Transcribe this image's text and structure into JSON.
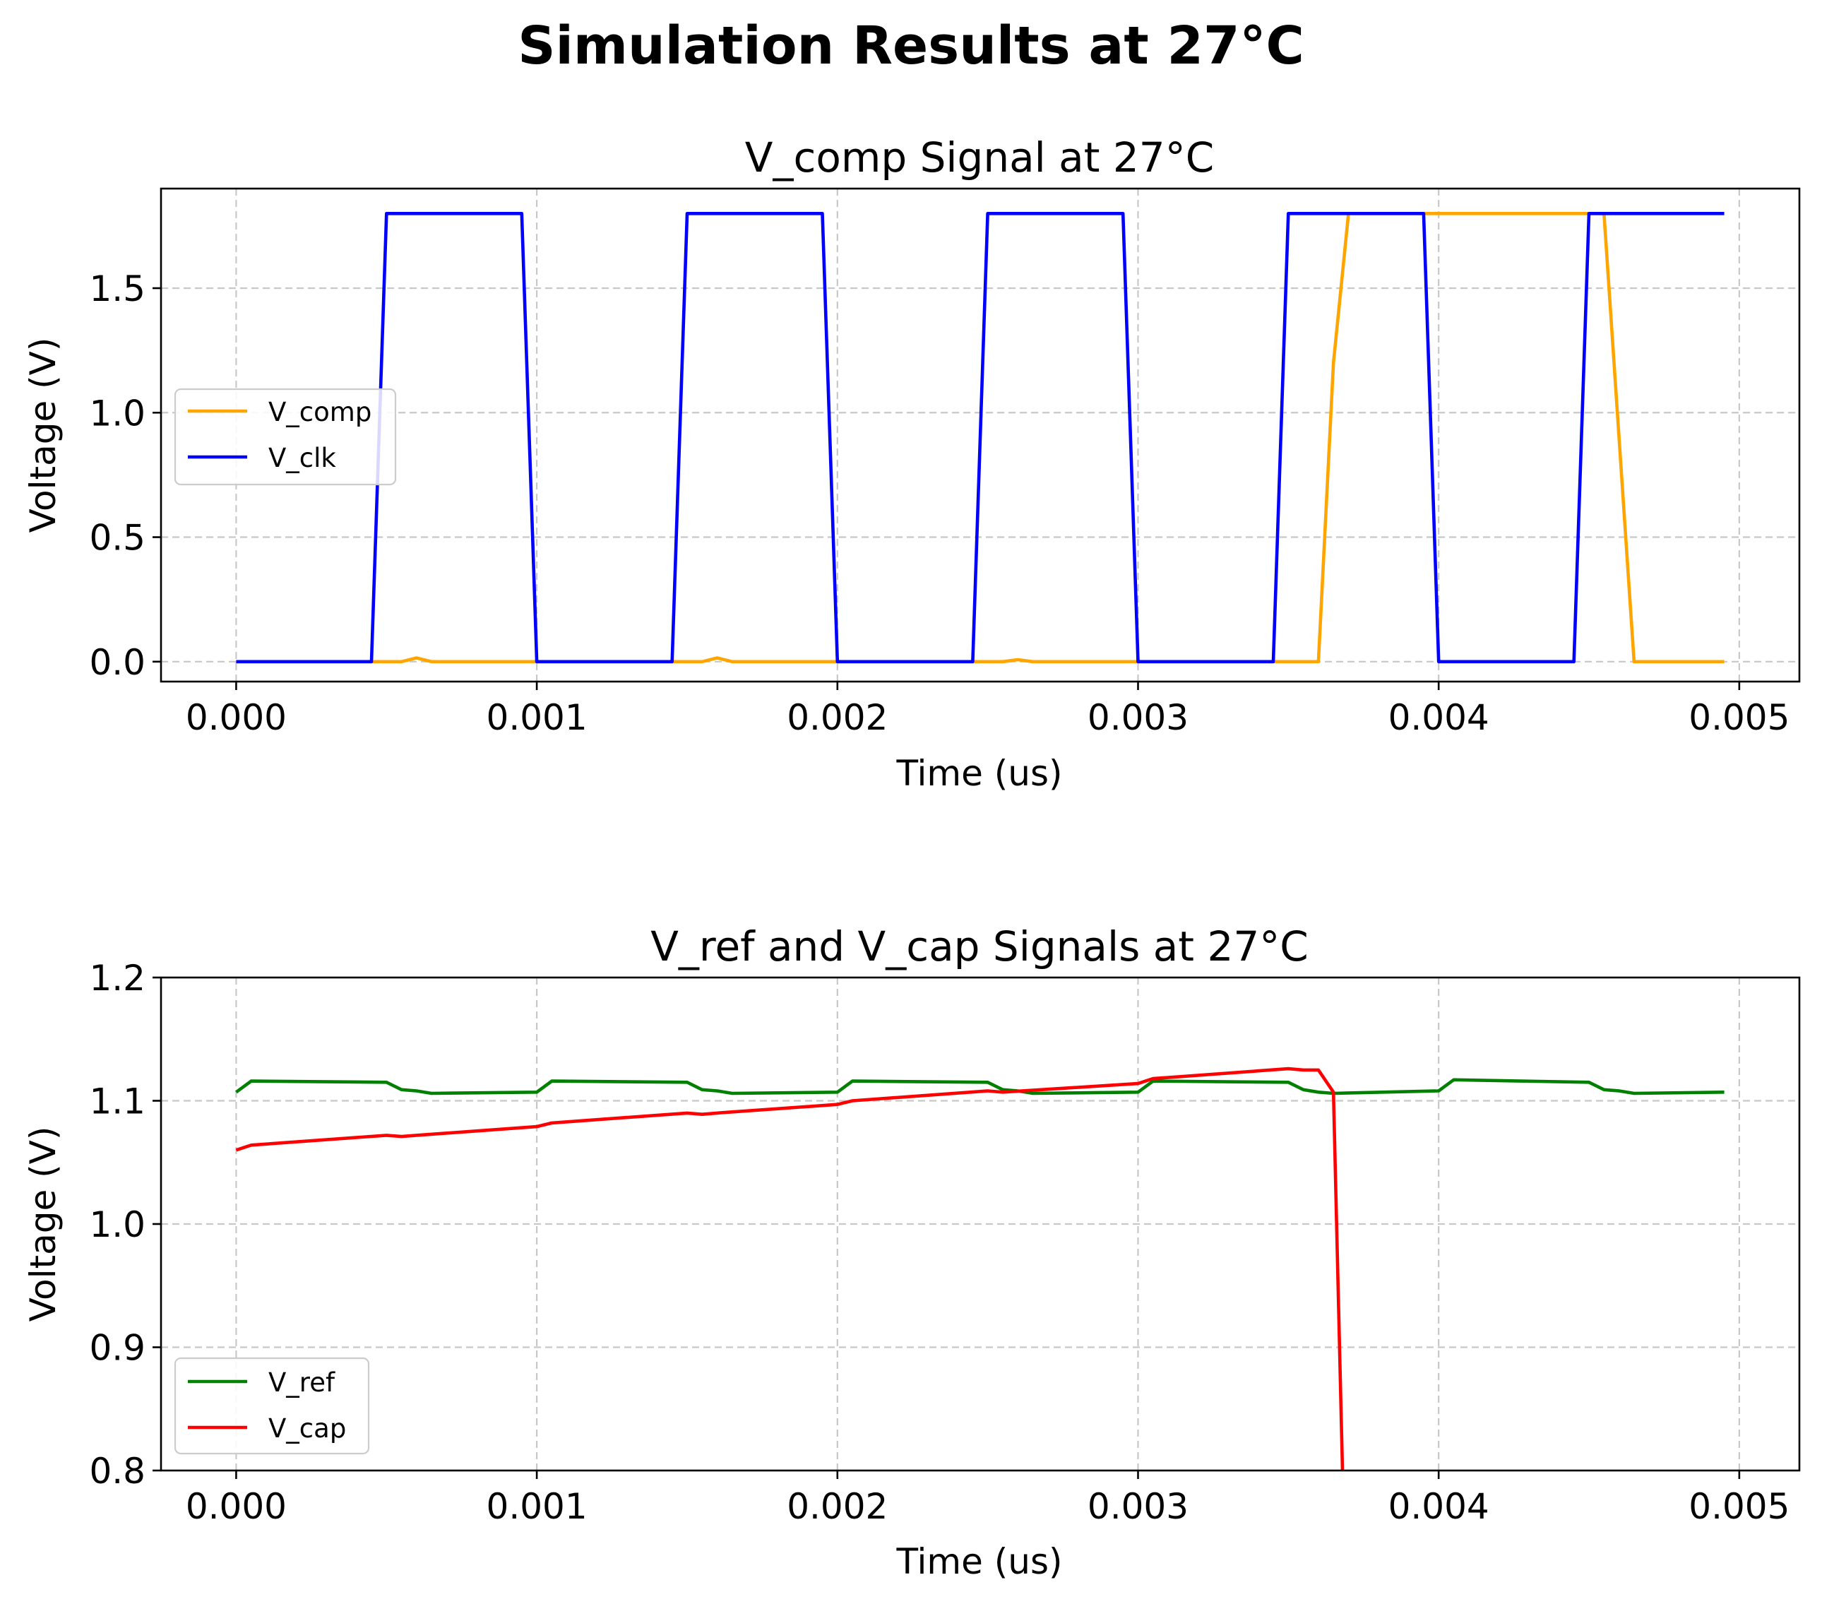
{
  "figure_title": "Simulation Results at 27°C",
  "chart_data": [
    {
      "type": "line",
      "title": "V_comp Signal at 27°C",
      "xlabel": "Time (us)",
      "ylabel": "Voltage (V)",
      "xlim": [
        -0.00025,
        0.0052
      ],
      "ylim": [
        -0.08,
        1.9
      ],
      "xticks": [
        0.0,
        0.001,
        0.002,
        0.003,
        0.004,
        0.005
      ],
      "xtick_labels": [
        "0.000",
        "0.001",
        "0.002",
        "0.003",
        "0.004",
        "0.005"
      ],
      "yticks": [
        0.0,
        0.5,
        1.0,
        1.5
      ],
      "ytick_labels": [
        "0.0",
        "0.5",
        "1.0",
        "1.5"
      ],
      "grid": true,
      "legend_position": "center-left",
      "series": [
        {
          "name": "V_comp",
          "color": "#ffa500",
          "x": [
            0,
            0.00055,
            0.0006,
            0.00065,
            0.0015,
            0.00155,
            0.0016,
            0.00165,
            0.0025,
            0.00255,
            0.0026,
            0.00265,
            0.0036,
            0.00365,
            0.0037,
            0.0045,
            0.00455,
            0.00465,
            0.00495
          ],
          "y": [
            0,
            0,
            0.015,
            0,
            0,
            0,
            0.015,
            0,
            0,
            0,
            0.008,
            0,
            0,
            1.2,
            1.8,
            1.8,
            1.8,
            0,
            0
          ]
        },
        {
          "name": "V_clk",
          "color": "#0000ff",
          "x": [
            0,
            0.00045,
            0.0005,
            0.00095,
            0.001,
            0.00145,
            0.0015,
            0.00195,
            0.002,
            0.00245,
            0.0025,
            0.00295,
            0.003,
            0.00345,
            0.0035,
            0.00395,
            0.004,
            0.00445,
            0.0045,
            0.00495
          ],
          "y": [
            0,
            0,
            1.8,
            1.8,
            0,
            0,
            1.8,
            1.8,
            0,
            0,
            1.8,
            1.8,
            0,
            0,
            1.8,
            1.8,
            0,
            0,
            1.8,
            1.8
          ]
        }
      ]
    },
    {
      "type": "line",
      "title": "V_ref and V_cap Signals at 27°C",
      "xlabel": "Time (us)",
      "ylabel": "Voltage (V)",
      "xlim": [
        -0.00025,
        0.0052
      ],
      "ylim": [
        0.8,
        1.2
      ],
      "xticks": [
        0.0,
        0.001,
        0.002,
        0.003,
        0.004,
        0.005
      ],
      "xtick_labels": [
        "0.000",
        "0.001",
        "0.002",
        "0.003",
        "0.004",
        "0.005"
      ],
      "yticks": [
        0.8,
        0.9,
        1.0,
        1.1,
        1.2
      ],
      "ytick_labels": [
        "0.8",
        "0.9",
        "1.0",
        "1.1",
        "1.2"
      ],
      "grid": true,
      "legend_position": "lower-left",
      "series": [
        {
          "name": "V_ref",
          "color": "#008000",
          "x": [
            0,
            5e-05,
            0.0005,
            0.00055,
            0.0006,
            0.00065,
            0.001,
            0.00105,
            0.0015,
            0.00155,
            0.0016,
            0.00165,
            0.002,
            0.00205,
            0.0025,
            0.00255,
            0.0026,
            0.00265,
            0.003,
            0.00305,
            0.0035,
            0.00355,
            0.0036,
            0.00365,
            0.004,
            0.00405,
            0.0045,
            0.00455,
            0.0046,
            0.00465,
            0.00495
          ],
          "y": [
            1.107,
            1.116,
            1.115,
            1.109,
            1.108,
            1.106,
            1.107,
            1.116,
            1.115,
            1.109,
            1.108,
            1.106,
            1.107,
            1.116,
            1.115,
            1.109,
            1.108,
            1.106,
            1.107,
            1.116,
            1.115,
            1.109,
            1.107,
            1.106,
            1.108,
            1.117,
            1.115,
            1.109,
            1.108,
            1.106,
            1.107
          ]
        },
        {
          "name": "V_cap",
          "color": "#ff0000",
          "x": [
            0,
            5e-05,
            0.0005,
            0.00055,
            0.0006,
            0.001,
            0.00105,
            0.0015,
            0.00155,
            0.0016,
            0.002,
            0.00205,
            0.0025,
            0.00255,
            0.003,
            0.00305,
            0.0035,
            0.00355,
            0.0036,
            0.00365,
            0.00368
          ],
          "y": [
            1.06,
            1.064,
            1.072,
            1.071,
            1.072,
            1.079,
            1.082,
            1.09,
            1.089,
            1.09,
            1.097,
            1.1,
            1.108,
            1.107,
            1.114,
            1.118,
            1.126,
            1.125,
            1.125,
            1.107,
            0.8
          ]
        }
      ]
    }
  ]
}
